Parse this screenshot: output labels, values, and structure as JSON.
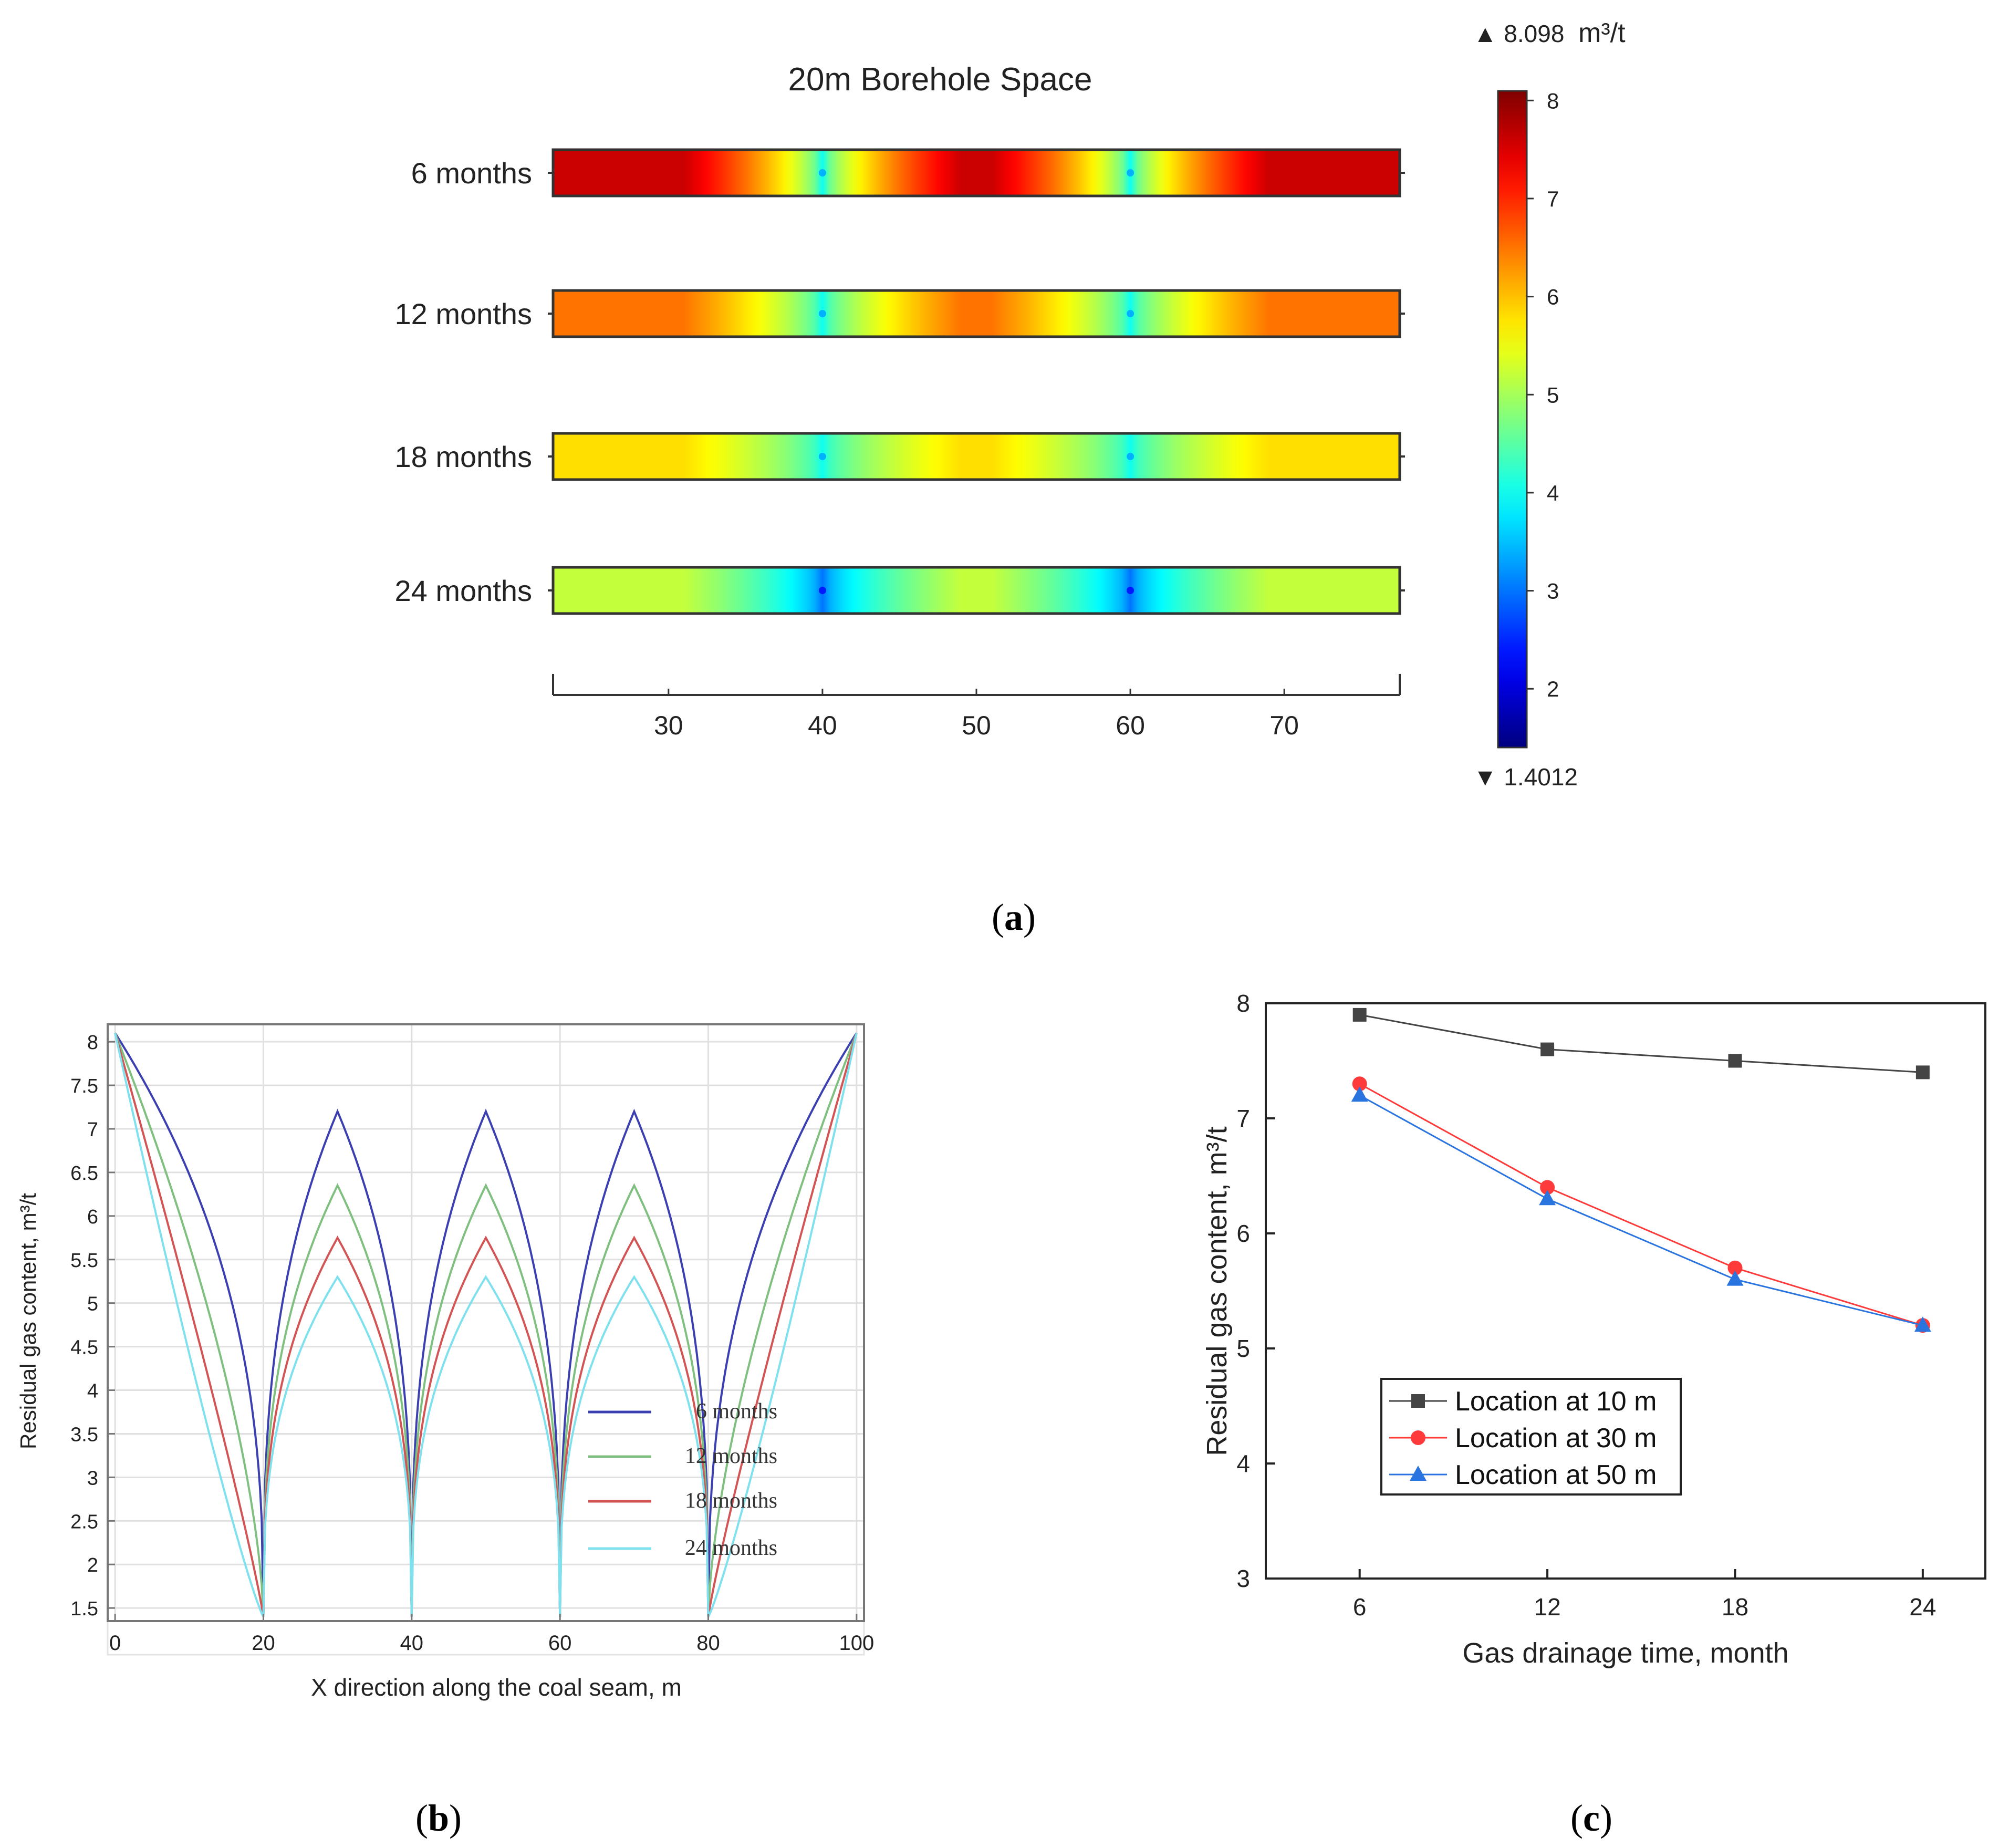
{
  "chart_data": [
    {
      "id": "a",
      "type": "heatmap",
      "title": "20m Borehole Space",
      "panel_label": "a",
      "rows": [
        {
          "label": "6 months",
          "base": 7.6,
          "center": 4.0,
          "boreholes": [
            40,
            60
          ]
        },
        {
          "label": "12 months",
          "base": 6.5,
          "center": 4.0,
          "boreholes": [
            40,
            60
          ]
        },
        {
          "label": "18 months",
          "base": 5.8,
          "center": 4.0,
          "boreholes": [
            40,
            60
          ]
        },
        {
          "label": "24 months",
          "base": 5.2,
          "center": 3.0,
          "boreholes": [
            40,
            60
          ]
        }
      ],
      "x_range": [
        22.5,
        77.5
      ],
      "x_ticks": [
        "30",
        "40",
        "50",
        "60",
        "70"
      ],
      "x_tick_values": [
        30,
        40,
        50,
        60,
        70
      ],
      "colorbar": {
        "max_label": "▲ 8.098",
        "unit": "m³/t",
        "min_label": "▼ 1.4012",
        "min": 1.4012,
        "max": 8.098,
        "ticks": [
          "8",
          "7",
          "6",
          "5",
          "4",
          "3",
          "2"
        ],
        "tick_values": [
          8,
          7,
          6,
          5,
          4,
          3,
          2
        ]
      }
    },
    {
      "id": "b",
      "type": "line",
      "panel_label": "b",
      "xlabel": "X direction along the coal seam, m",
      "ylabel": "Residual gas content, m³/t",
      "xlim": [
        -1,
        101
      ],
      "ylim": [
        1.35,
        8.2
      ],
      "x_ticks": [
        "0",
        "20",
        "40",
        "60",
        "80",
        "100"
      ],
      "x_tick_values": [
        0,
        20,
        40,
        60,
        80,
        100
      ],
      "y_ticks": [
        "1.5",
        "2",
        "2.5",
        "3",
        "3.5",
        "4",
        "4.5",
        "5",
        "5.5",
        "6",
        "6.5",
        "7",
        "7.5",
        "8"
      ],
      "y_tick_values": [
        1.5,
        2,
        2.5,
        3,
        3.5,
        4,
        4.5,
        5,
        5.5,
        6,
        6.5,
        7,
        7.5,
        8
      ],
      "boreholes": [
        20,
        40,
        60,
        80
      ],
      "edge_value": 8.1,
      "borehole_value": 1.4,
      "series": [
        {
          "name": "6 months",
          "color": "#3b3fb0",
          "peak": 7.2
        },
        {
          "name": "12 months",
          "color": "#7fbf7f",
          "peak": 6.35
        },
        {
          "name": "18 months",
          "color": "#d25454",
          "peak": 5.75
        },
        {
          "name": "24 months",
          "color": "#7fe0ee",
          "peak": 5.3
        }
      ]
    },
    {
      "id": "c",
      "type": "line",
      "panel_label": "c",
      "xlabel": "Gas drainage time, month",
      "ylabel": "Residual gas content, m³/t",
      "xlim": [
        3,
        26
      ],
      "ylim": [
        3,
        8
      ],
      "x_ticks": [
        "6",
        "12",
        "18",
        "24"
      ],
      "x_tick_values": [
        6,
        12,
        18,
        24
      ],
      "y_ticks": [
        "3",
        "4",
        "5",
        "6",
        "7",
        "8"
      ],
      "y_tick_values": [
        3,
        4,
        5,
        6,
        7,
        8
      ],
      "x": [
        6,
        12,
        18,
        24
      ],
      "series": [
        {
          "name": "Location at 10 m",
          "color": "#444444",
          "marker": "square",
          "values": [
            7.9,
            7.6,
            7.5,
            7.4
          ]
        },
        {
          "name": "Location at 30 m",
          "color": "#ff3a3a",
          "marker": "circle",
          "values": [
            7.3,
            6.4,
            5.7,
            5.2
          ]
        },
        {
          "name": "Location at 50 m",
          "color": "#2a74e0",
          "marker": "triangle",
          "values": [
            7.2,
            6.3,
            5.6,
            5.2
          ]
        }
      ]
    }
  ]
}
